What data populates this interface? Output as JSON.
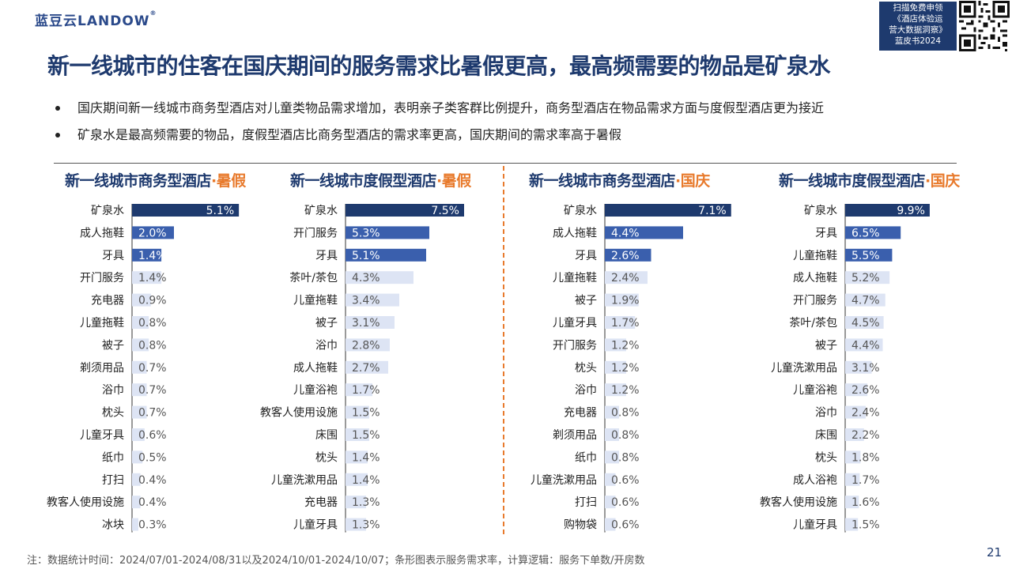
{
  "header": {
    "logo_text": "蓝豆云LANDOW",
    "logo_mark": "®",
    "promo_lines": [
      "扫描免费申领",
      "《酒店体验运",
      "营大数据洞察》",
      "蓝皮书2024"
    ]
  },
  "title": "新一线城市的住客在国庆期间的服务需求比暑假更高，最高频需要的物品是矿泉水",
  "bullets": [
    "国庆期间新一线城市商务型酒店对儿童类物品需求增加，表明亲子类客群比例提升，商务型酒店在物品需求方面与度假型酒店更为接近",
    "矿泉水是最高频需要的物品，度假型酒店比商务型酒店的需求率更高，国庆期间的需求率高于暑假"
  ],
  "colors": {
    "dark_blue": "#1e3a6e",
    "mid_blue": "#3a5fad",
    "light_blue": "#dde4f4",
    "accent_orange": "#e87a2c"
  },
  "chart_data": [
    {
      "type": "bar",
      "orientation": "horizontal",
      "title_main": "新一线城市商务型酒店",
      "title_sep": "·",
      "title_highlight": "暑假",
      "categories": [
        "矿泉水",
        "成人拖鞋",
        "牙具",
        "开门服务",
        "充电器",
        "儿童拖鞋",
        "被子",
        "剃须用品",
        "浴巾",
        "枕头",
        "儿童牙具",
        "纸巾",
        "打扫",
        "教客人使用设施",
        "冰块"
      ],
      "values": [
        5.1,
        2.0,
        1.4,
        1.4,
        0.9,
        0.8,
        0.8,
        0.7,
        0.7,
        0.7,
        0.6,
        0.5,
        0.4,
        0.4,
        0.3
      ],
      "labels": [
        "5.1%",
        "2.0%",
        "1.4%",
        "1.4%",
        "0.9%",
        "0.8%",
        "0.8%",
        "0.7%",
        "0.7%",
        "0.7%",
        "0.6%",
        "0.5%",
        "0.4%",
        "0.4%",
        "0.3%"
      ]
    },
    {
      "type": "bar",
      "orientation": "horizontal",
      "title_main": "新一线城市度假型酒店",
      "title_sep": "·",
      "title_highlight": "暑假",
      "categories": [
        "矿泉水",
        "开门服务",
        "牙具",
        "茶叶/茶包",
        "儿童拖鞋",
        "被子",
        "浴巾",
        "成人拖鞋",
        "儿童浴袍",
        "教客人使用设施",
        "床围",
        "枕头",
        "儿童洗漱用品",
        "充电器",
        "儿童牙具"
      ],
      "values": [
        7.5,
        5.3,
        5.1,
        4.3,
        3.4,
        3.1,
        2.8,
        2.7,
        1.7,
        1.5,
        1.5,
        1.4,
        1.4,
        1.3,
        1.3
      ],
      "labels": [
        "7.5%",
        "5.3%",
        "5.1%",
        "4.3%",
        "3.4%",
        "3.1%",
        "2.8%",
        "2.7%",
        "1.7%",
        "1.5%",
        "1.5%",
        "1.4%",
        "1.4%",
        "1.3%",
        "1.3%"
      ]
    },
    {
      "type": "bar",
      "orientation": "horizontal",
      "title_main": "新一线城市商务型酒店",
      "title_sep": "·",
      "title_highlight": "国庆",
      "categories": [
        "矿泉水",
        "成人拖鞋",
        "牙具",
        "儿童拖鞋",
        "被子",
        "儿童牙具",
        "开门服务",
        "枕头",
        "浴巾",
        "充电器",
        "剃须用品",
        "纸巾",
        "儿童洗漱用品",
        "打扫",
        "购物袋"
      ],
      "values": [
        7.1,
        4.4,
        2.6,
        2.4,
        1.9,
        1.7,
        1.2,
        1.2,
        1.2,
        0.8,
        0.8,
        0.8,
        0.6,
        0.6,
        0.6
      ],
      "labels": [
        "7.1%",
        "4.4%",
        "2.6%",
        "2.4%",
        "1.9%",
        "1.7%",
        "1.2%",
        "1.2%",
        "1.2%",
        "0.8%",
        "0.8%",
        "0.8%",
        "0.6%",
        "0.6%",
        "0.6%"
      ]
    },
    {
      "type": "bar",
      "orientation": "horizontal",
      "title_main": "新一线城市度假型酒店",
      "title_sep": "·",
      "title_highlight": "国庆",
      "categories": [
        "矿泉水",
        "牙具",
        "儿童拖鞋",
        "成人拖鞋",
        "开门服务",
        "茶叶/茶包",
        "被子",
        "儿童洗漱用品",
        "儿童浴袍",
        "浴巾",
        "床围",
        "枕头",
        "成人浴袍",
        "教客人使用设施",
        "儿童牙具"
      ],
      "values": [
        9.9,
        6.5,
        5.5,
        5.2,
        4.7,
        4.5,
        4.4,
        3.1,
        2.6,
        2.4,
        2.2,
        1.8,
        1.7,
        1.6,
        1.5
      ],
      "labels": [
        "9.9%",
        "6.5%",
        "5.5%",
        "5.2%",
        "4.7%",
        "4.5%",
        "4.4%",
        "3.1%",
        "2.6%",
        "2.4%",
        "2.2%",
        "1.8%",
        "1.7%",
        "1.6%",
        "1.5%"
      ]
    }
  ],
  "footnote": "注：数据统计时间：2024/07/01-2024/08/31以及2024/10/01-2024/10/07；条形图表示服务需求率，计算逻辑：服务下单数/开房数",
  "page_number": "21"
}
